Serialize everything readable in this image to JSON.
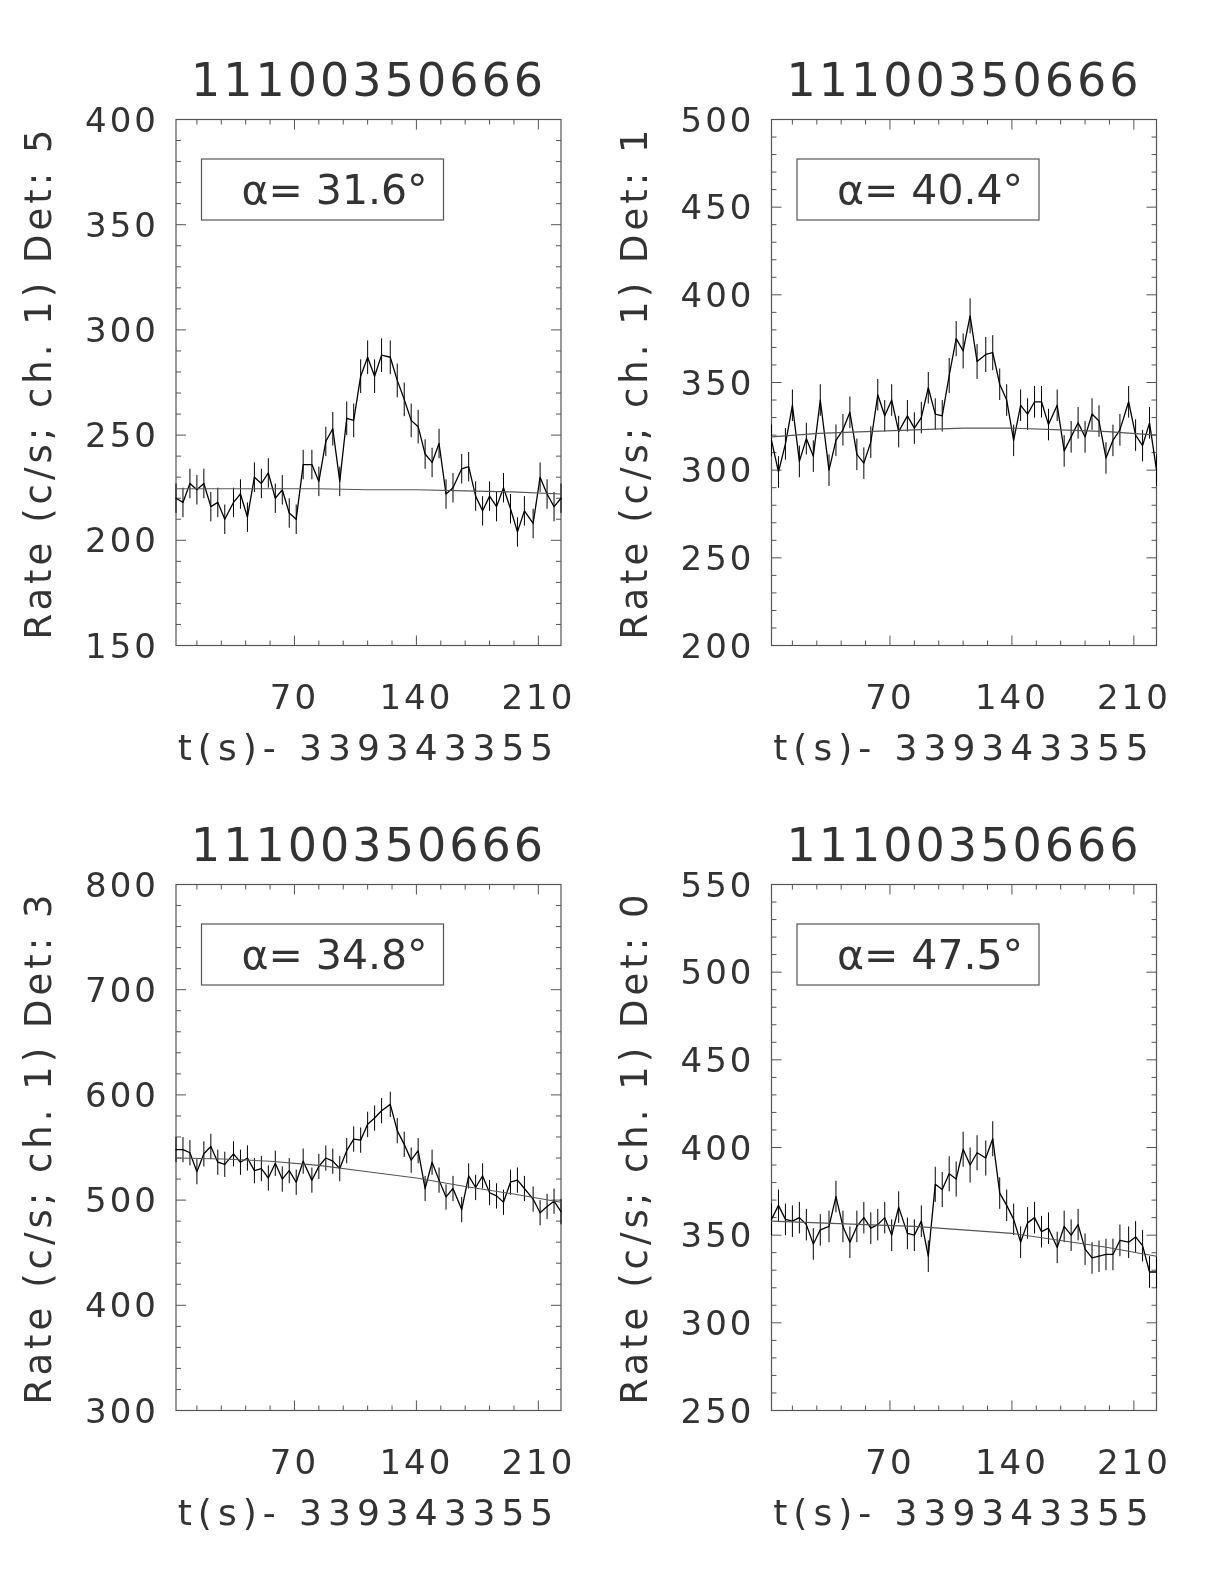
{
  "chart_data": [
    {
      "type": "line",
      "title": "11100350666",
      "xlabel": "t(s)- 339343355",
      "ylabel": "Rate (c/s; ch. 1) Det: 5",
      "annotations": [
        "α= 31.6°"
      ],
      "x": [
        2,
        6,
        10,
        14,
        18,
        22,
        26,
        30,
        35,
        39,
        43,
        47,
        51,
        55,
        59,
        63,
        67,
        71,
        75,
        80,
        84,
        88,
        92,
        96,
        100,
        104,
        108,
        112,
        116,
        120,
        125,
        129,
        133,
        137,
        141,
        145,
        149,
        153,
        157,
        161,
        166,
        170,
        174,
        178,
        182,
        186,
        190,
        194,
        198,
        202,
        207,
        211,
        215,
        219,
        223
      ],
      "xlim": [
        2,
        223
      ],
      "xticks": [
        {
          "value": 14,
          "label": null
        },
        {
          "value": 28,
          "label": null
        },
        {
          "value": 42,
          "label": null
        },
        {
          "value": 56,
          "label": null
        },
        70,
        {
          "value": 84,
          "label": null
        },
        {
          "value": 98,
          "label": null
        },
        {
          "value": 112,
          "label": null
        },
        {
          "value": 126,
          "label": null
        },
        140,
        {
          "value": 154,
          "label": null
        },
        {
          "value": 168,
          "label": null
        },
        {
          "value": 182,
          "label": null
        },
        {
          "value": 196,
          "label": null
        },
        210
      ],
      "ylim": [
        150,
        400
      ],
      "yticks": [
        150,
        {
          "value": 160,
          "label": null
        },
        {
          "value": 170,
          "label": null
        },
        {
          "value": 180,
          "label": null
        },
        {
          "value": 190,
          "label": null
        },
        200,
        {
          "value": 210,
          "label": null
        },
        {
          "value": 220,
          "label": null
        },
        {
          "value": 230,
          "label": null
        },
        {
          "value": 240,
          "label": null
        },
        250,
        {
          "value": 260,
          "label": null
        },
        {
          "value": 270,
          "label": null
        },
        {
          "value": 280,
          "label": null
        },
        {
          "value": 290,
          "label": null
        },
        300,
        {
          "value": 310,
          "label": null
        },
        {
          "value": 320,
          "label": null
        },
        {
          "value": 330,
          "label": null
        },
        {
          "value": 340,
          "label": null
        },
        350,
        {
          "value": 360,
          "label": null
        },
        {
          "value": 370,
          "label": null
        },
        {
          "value": 380,
          "label": null
        },
        {
          "value": 390,
          "label": null
        },
        400
      ],
      "series": [
        {
          "color": "#000000",
          "values": [
            220,
            218,
            227,
            224,
            227,
            216,
            218,
            210,
            218,
            222,
            211,
            230,
            227,
            232,
            220,
            224,
            213,
            210,
            236,
            236,
            228,
            247,
            253,
            228,
            258,
            257,
            278,
            287,
            278,
            288,
            287,
            276,
            267,
            257,
            254,
            241,
            237,
            246,
            222,
            225,
            234,
            235,
            221,
            214,
            221,
            216,
            225,
            215,
            204,
            214,
            208,
            230,
            222,
            216,
            220
          ],
          "errors": [
            7,
            7,
            7,
            7,
            7,
            7,
            7,
            7,
            7,
            7,
            7,
            7,
            7,
            7,
            7,
            7,
            7,
            7,
            7,
            7,
            7,
            7,
            8,
            7,
            8,
            8,
            8,
            8,
            8,
            8,
            8,
            8,
            8,
            8,
            8,
            7,
            7,
            7,
            7,
            7,
            7,
            7,
            7,
            7,
            7,
            7,
            7,
            7,
            7,
            7,
            7,
            7,
            7,
            7,
            7
          ]
        },
        {
          "color": "#555555",
          "x": [
            2,
            29,
            56,
            84,
            112,
            140,
            168,
            195,
            223
          ],
          "values": [
            224.5,
            224.5,
            224.5,
            224.5,
            224,
            224,
            223.5,
            223,
            222
          ]
        }
      ]
    },
    {
      "type": "line",
      "title": "11100350666",
      "xlabel": "t(s)- 339343355",
      "ylabel": "Rate (c/s; ch. 1) Det: 1",
      "annotations": [
        "α= 40.4°"
      ],
      "x": [
        2,
        6,
        10,
        14,
        18,
        22,
        26,
        30,
        35,
        39,
        43,
        47,
        51,
        55,
        59,
        63,
        67,
        71,
        75,
        80,
        84,
        88,
        92,
        96,
        100,
        104,
        108,
        112,
        116,
        120,
        125,
        129,
        133,
        137,
        141,
        145,
        149,
        153,
        157,
        161,
        166,
        170,
        174,
        178,
        182,
        186,
        190,
        194,
        198,
        202,
        207,
        211,
        215,
        219,
        223
      ],
      "xlim": [
        2,
        223
      ],
      "xticks": [
        {
          "value": 14,
          "label": null
        },
        {
          "value": 28,
          "label": null
        },
        {
          "value": 42,
          "label": null
        },
        {
          "value": 56,
          "label": null
        },
        70,
        {
          "value": 84,
          "label": null
        },
        {
          "value": 98,
          "label": null
        },
        {
          "value": 112,
          "label": null
        },
        {
          "value": 126,
          "label": null
        },
        140,
        {
          "value": 154,
          "label": null
        },
        {
          "value": 168,
          "label": null
        },
        {
          "value": 182,
          "label": null
        },
        {
          "value": 196,
          "label": null
        },
        210
      ],
      "ylim": [
        200,
        500
      ],
      "yticks": [
        200,
        {
          "value": 210,
          "label": null
        },
        {
          "value": 220,
          "label": null
        },
        {
          "value": 230,
          "label": null
        },
        {
          "value": 240,
          "label": null
        },
        250,
        {
          "value": 260,
          "label": null
        },
        {
          "value": 270,
          "label": null
        },
        {
          "value": 280,
          "label": null
        },
        {
          "value": 290,
          "label": null
        },
        300,
        {
          "value": 310,
          "label": null
        },
        {
          "value": 320,
          "label": null
        },
        {
          "value": 330,
          "label": null
        },
        {
          "value": 340,
          "label": null
        },
        350,
        {
          "value": 360,
          "label": null
        },
        {
          "value": 370,
          "label": null
        },
        {
          "value": 380,
          "label": null
        },
        {
          "value": 390,
          "label": null
        },
        400,
        {
          "value": 410,
          "label": null
        },
        {
          "value": 420,
          "label": null
        },
        {
          "value": 430,
          "label": null
        },
        {
          "value": 440,
          "label": null
        },
        450,
        {
          "value": 460,
          "label": null
        },
        {
          "value": 470,
          "label": null
        },
        {
          "value": 480,
          "label": null
        },
        {
          "value": 490,
          "label": null
        },
        500
      ],
      "series": [
        {
          "color": "#000000",
          "values": [
            317,
            299,
            315,
            337,
            305,
            318,
            308,
            340,
            300,
            317,
            323,
            333,
            309,
            304,
            316,
            343,
            331,
            340,
            322,
            331,
            324,
            330,
            347,
            332,
            331,
            354,
            375,
            368,
            388,
            362,
            366,
            367,
            349,
            340,
            317,
            337,
            332,
            339,
            339,
            326,
            337,
            311,
            319,
            327,
            319,
            332,
            328,
            307,
            317,
            323,
            339,
            320,
            314,
            327,
            300
          ],
          "errors": [
            9,
            9,
            9,
            9,
            9,
            9,
            9,
            9,
            9,
            9,
            9,
            9,
            9,
            9,
            9,
            9,
            9,
            9,
            9,
            9,
            9,
            9,
            9,
            9,
            9,
            10,
            10,
            10,
            10,
            10,
            10,
            10,
            9,
            9,
            9,
            9,
            9,
            9,
            9,
            9,
            9,
            9,
            9,
            9,
            9,
            9,
            9,
            9,
            9,
            9,
            9,
            9,
            9,
            9,
            9
          ]
        },
        {
          "color": "#555555",
          "x": [
            2,
            29,
            56,
            84,
            112,
            140,
            168,
            195,
            223
          ],
          "values": [
            319,
            321,
            322,
            323,
            324,
            324,
            323,
            322,
            320
          ]
        }
      ]
    },
    {
      "type": "line",
      "title": "11100350666",
      "xlabel": "t(s)- 339343355",
      "ylabel": "Rate (c/s; ch. 1) Det: 3",
      "annotations": [
        "α= 34.8°"
      ],
      "x": [
        2,
        6,
        10,
        14,
        18,
        22,
        26,
        30,
        35,
        39,
        43,
        47,
        51,
        55,
        59,
        63,
        67,
        71,
        75,
        80,
        84,
        88,
        92,
        96,
        100,
        104,
        108,
        112,
        116,
        120,
        125,
        129,
        133,
        137,
        141,
        145,
        149,
        153,
        157,
        161,
        166,
        170,
        174,
        178,
        182,
        186,
        190,
        194,
        198,
        202,
        207,
        211,
        215,
        219,
        223
      ],
      "xlim": [
        2,
        223
      ],
      "xticks": [
        {
          "value": 14,
          "label": null
        },
        {
          "value": 28,
          "label": null
        },
        {
          "value": 42,
          "label": null
        },
        {
          "value": 56,
          "label": null
        },
        70,
        {
          "value": 84,
          "label": null
        },
        {
          "value": 98,
          "label": null
        },
        {
          "value": 112,
          "label": null
        },
        {
          "value": 126,
          "label": null
        },
        140,
        {
          "value": 154,
          "label": null
        },
        {
          "value": 168,
          "label": null
        },
        {
          "value": 182,
          "label": null
        },
        {
          "value": 196,
          "label": null
        },
        210
      ],
      "ylim": [
        300,
        800
      ],
      "yticks": [
        300,
        {
          "value": 320,
          "label": null
        },
        {
          "value": 340,
          "label": null
        },
        {
          "value": 360,
          "label": null
        },
        {
          "value": 380,
          "label": null
        },
        400,
        {
          "value": 420,
          "label": null
        },
        {
          "value": 440,
          "label": null
        },
        {
          "value": 460,
          "label": null
        },
        {
          "value": 480,
          "label": null
        },
        500,
        {
          "value": 520,
          "label": null
        },
        {
          "value": 540,
          "label": null
        },
        {
          "value": 560,
          "label": null
        },
        {
          "value": 580,
          "label": null
        },
        600,
        {
          "value": 620,
          "label": null
        },
        {
          "value": 640,
          "label": null
        },
        {
          "value": 660,
          "label": null
        },
        {
          "value": 680,
          "label": null
        },
        700,
        {
          "value": 720,
          "label": null
        },
        {
          "value": 740,
          "label": null
        },
        {
          "value": 760,
          "label": null
        },
        {
          "value": 780,
          "label": null
        },
        800
      ],
      "series": [
        {
          "color": "#000000",
          "values": [
            548,
            548,
            545,
            527,
            544,
            551,
            536,
            534,
            544,
            536,
            540,
            528,
            530,
            521,
            535,
            520,
            528,
            517,
            537,
            519,
            532,
            540,
            537,
            530,
            547,
            558,
            557,
            572,
            578,
            585,
            591,
            566,
            553,
            538,
            547,
            511,
            536,
            519,
            503,
            511,
            491,
            523,
            512,
            523,
            507,
            504,
            498,
            517,
            519,
            511,
            501,
            488,
            494,
            499,
            489
          ],
          "errors": [
            12,
            12,
            12,
            12,
            12,
            12,
            12,
            12,
            12,
            12,
            12,
            12,
            12,
            12,
            12,
            12,
            12,
            12,
            12,
            12,
            12,
            12,
            12,
            12,
            12,
            12,
            12,
            12,
            12,
            12,
            12,
            12,
            12,
            12,
            12,
            12,
            12,
            12,
            12,
            12,
            12,
            12,
            12,
            12,
            12,
            12,
            12,
            12,
            12,
            12,
            12,
            12,
            12,
            12,
            12
          ]
        },
        {
          "color": "#555555",
          "x": [
            2,
            29,
            56,
            84,
            112,
            140,
            168,
            195,
            223
          ],
          "values": [
            540,
            539,
            537,
            533,
            527,
            521,
            513,
            506,
            498
          ]
        }
      ]
    },
    {
      "type": "line",
      "title": "11100350666",
      "xlabel": "t(s)- 339343355",
      "ylabel": "Rate (c/s; ch. 1) Det: 0",
      "annotations": [
        "α= 47.5°"
      ],
      "x": [
        2,
        6,
        10,
        14,
        18,
        22,
        26,
        30,
        35,
        39,
        43,
        47,
        51,
        55,
        59,
        63,
        67,
        71,
        75,
        80,
        84,
        88,
        92,
        96,
        100,
        104,
        108,
        112,
        116,
        120,
        125,
        129,
        133,
        137,
        141,
        145,
        149,
        153,
        157,
        161,
        166,
        170,
        174,
        178,
        182,
        186,
        190,
        194,
        198,
        202,
        207,
        211,
        215,
        219,
        223
      ],
      "xlim": [
        2,
        223
      ],
      "xticks": [
        {
          "value": 14,
          "label": null
        },
        {
          "value": 28,
          "label": null
        },
        {
          "value": 42,
          "label": null
        },
        {
          "value": 56,
          "label": null
        },
        70,
        {
          "value": 84,
          "label": null
        },
        {
          "value": 98,
          "label": null
        },
        {
          "value": 112,
          "label": null
        },
        {
          "value": 126,
          "label": null
        },
        140,
        {
          "value": 154,
          "label": null
        },
        {
          "value": 168,
          "label": null
        },
        {
          "value": 182,
          "label": null
        },
        {
          "value": 196,
          "label": null
        },
        210
      ],
      "ylim": [
        250,
        550
      ],
      "yticks": [
        250,
        {
          "value": 260,
          "label": null
        },
        {
          "value": 270,
          "label": null
        },
        {
          "value": 280,
          "label": null
        },
        {
          "value": 290,
          "label": null
        },
        300,
        {
          "value": 310,
          "label": null
        },
        {
          "value": 320,
          "label": null
        },
        {
          "value": 330,
          "label": null
        },
        {
          "value": 340,
          "label": null
        },
        350,
        {
          "value": 360,
          "label": null
        },
        {
          "value": 370,
          "label": null
        },
        {
          "value": 380,
          "label": null
        },
        {
          "value": 390,
          "label": null
        },
        400,
        {
          "value": 410,
          "label": null
        },
        {
          "value": 420,
          "label": null
        },
        {
          "value": 430,
          "label": null
        },
        {
          "value": 440,
          "label": null
        },
        450,
        {
          "value": 460,
          "label": null
        },
        {
          "value": 470,
          "label": null
        },
        {
          "value": 480,
          "label": null
        },
        {
          "value": 490,
          "label": null
        },
        500,
        {
          "value": 510,
          "label": null
        },
        {
          "value": 520,
          "label": null
        },
        {
          "value": 530,
          "label": null
        },
        {
          "value": 540,
          "label": null
        },
        550
      ],
      "series": [
        {
          "color": "#000000",
          "values": [
            359,
            367,
            359,
            358,
            360,
            356,
            345,
            353,
            355,
            372,
            355,
            346,
            355,
            360,
            354,
            356,
            360,
            350,
            366,
            351,
            350,
            358,
            338,
            379,
            376,
            385,
            382,
            399,
            390,
            397,
            394,
            405,
            374,
            367,
            359,
            346,
            357,
            360,
            352,
            354,
            343,
            355,
            350,
            356,
            342,
            337,
            338,
            339,
            339,
            347,
            346,
            349,
            344,
            329,
            329
          ],
          "errors": [
            9,
            9,
            9,
            9,
            9,
            9,
            9,
            9,
            9,
            9,
            9,
            9,
            9,
            9,
            9,
            9,
            9,
            9,
            9,
            9,
            9,
            9,
            9,
            10,
            10,
            10,
            10,
            10,
            10,
            10,
            10,
            10,
            9,
            9,
            9,
            9,
            9,
            9,
            9,
            9,
            9,
            9,
            9,
            9,
            9,
            9,
            9,
            9,
            9,
            9,
            9,
            9,
            9,
            9,
            9
          ]
        },
        {
          "color": "#555555",
          "x": [
            2,
            29,
            56,
            84,
            112,
            140,
            168,
            195,
            223
          ],
          "values": [
            358,
            357,
            356,
            355,
            353,
            351,
            347,
            343,
            338
          ]
        }
      ]
    }
  ]
}
